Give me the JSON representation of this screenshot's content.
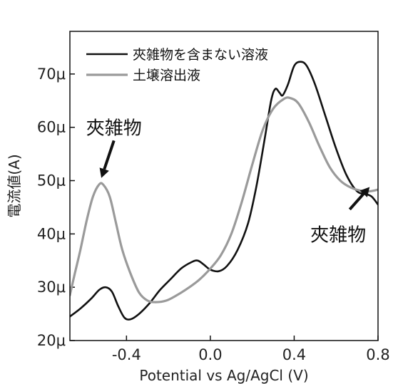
{
  "chart_data": {
    "type": "line",
    "xlabel": "Potential vs Ag/AgCl (V)",
    "ylabel": "電流値(A)",
    "xlim": [
      -0.67,
      0.8
    ],
    "ylim": [
      20,
      78
    ],
    "x_ticks": [
      {
        "value": -0.4,
        "label": "-0.4"
      },
      {
        "value": 0.0,
        "label": "0.0"
      },
      {
        "value": 0.4,
        "label": "0.4"
      },
      {
        "value": 0.8,
        "label": "0.8"
      }
    ],
    "y_ticks": [
      {
        "value": 20,
        "label": "20μ"
      },
      {
        "value": 30,
        "label": "30μ"
      },
      {
        "value": 40,
        "label": "40μ"
      },
      {
        "value": 50,
        "label": "50μ"
      },
      {
        "value": 60,
        "label": "60μ"
      },
      {
        "value": 70,
        "label": "70μ"
      }
    ],
    "legend_position": "top-right",
    "grid": false,
    "series": [
      {
        "name": "夾雑物を含まない溶液",
        "color": "#111111",
        "points": [
          [
            -0.67,
            24.5
          ],
          [
            -0.62,
            26.0
          ],
          [
            -0.57,
            27.8
          ],
          [
            -0.53,
            29.5
          ],
          [
            -0.5,
            30.0
          ],
          [
            -0.47,
            29.2
          ],
          [
            -0.44,
            26.5
          ],
          [
            -0.41,
            24.3
          ],
          [
            -0.38,
            24.0
          ],
          [
            -0.34,
            25.0
          ],
          [
            -0.29,
            27.0
          ],
          [
            -0.24,
            29.5
          ],
          [
            -0.19,
            31.5
          ],
          [
            -0.14,
            33.5
          ],
          [
            -0.09,
            34.7
          ],
          [
            -0.06,
            35.0
          ],
          [
            -0.03,
            34.2
          ],
          [
            0.0,
            33.3
          ],
          [
            0.04,
            33.0
          ],
          [
            0.08,
            34.0
          ],
          [
            0.13,
            37.0
          ],
          [
            0.18,
            42.0
          ],
          [
            0.22,
            49.0
          ],
          [
            0.26,
            58.0
          ],
          [
            0.29,
            65.0
          ],
          [
            0.31,
            67.2
          ],
          [
            0.33,
            66.5
          ],
          [
            0.345,
            66.0
          ],
          [
            0.37,
            68.0
          ],
          [
            0.4,
            71.5
          ],
          [
            0.43,
            72.3
          ],
          [
            0.46,
            71.5
          ],
          [
            0.5,
            68.0
          ],
          [
            0.55,
            62.0
          ],
          [
            0.6,
            56.0
          ],
          [
            0.65,
            51.0
          ],
          [
            0.7,
            48.0
          ],
          [
            0.74,
            47.5
          ],
          [
            0.77,
            47.0
          ],
          [
            0.8,
            45.5
          ]
        ]
      },
      {
        "name": "土壌溶出液",
        "color": "#9a9a9a",
        "points": [
          [
            -0.67,
            28.5
          ],
          [
            -0.65,
            32.0
          ],
          [
            -0.62,
            37.0
          ],
          [
            -0.59,
            42.5
          ],
          [
            -0.56,
            47.0
          ],
          [
            -0.53,
            49.3
          ],
          [
            -0.51,
            49.2
          ],
          [
            -0.48,
            47.0
          ],
          [
            -0.45,
            42.0
          ],
          [
            -0.42,
            37.0
          ],
          [
            -0.38,
            32.5
          ],
          [
            -0.34,
            29.0
          ],
          [
            -0.3,
            27.5
          ],
          [
            -0.26,
            27.2
          ],
          [
            -0.21,
            27.5
          ],
          [
            -0.16,
            28.5
          ],
          [
            -0.1,
            30.0
          ],
          [
            -0.05,
            31.5
          ],
          [
            0.0,
            33.5
          ],
          [
            0.05,
            36.0
          ],
          [
            0.1,
            40.0
          ],
          [
            0.15,
            46.0
          ],
          [
            0.2,
            53.0
          ],
          [
            0.25,
            59.5
          ],
          [
            0.3,
            63.5
          ],
          [
            0.35,
            65.3
          ],
          [
            0.38,
            65.5
          ],
          [
            0.42,
            64.5
          ],
          [
            0.47,
            61.0
          ],
          [
            0.52,
            56.5
          ],
          [
            0.57,
            52.5
          ],
          [
            0.62,
            50.0
          ],
          [
            0.67,
            48.7
          ],
          [
            0.72,
            48.1
          ],
          [
            0.76,
            48.0
          ],
          [
            0.8,
            48.3
          ]
        ]
      }
    ],
    "annotations": [
      {
        "text": "夾雑物",
        "anchor": [
          -0.52,
          50.5
        ],
        "label_at": [
          -0.46,
          60.0
        ]
      },
      {
        "text": "夾雑物",
        "anchor": [
          0.76,
          48.8
        ],
        "label_at": [
          0.61,
          40.0
        ]
      }
    ]
  }
}
